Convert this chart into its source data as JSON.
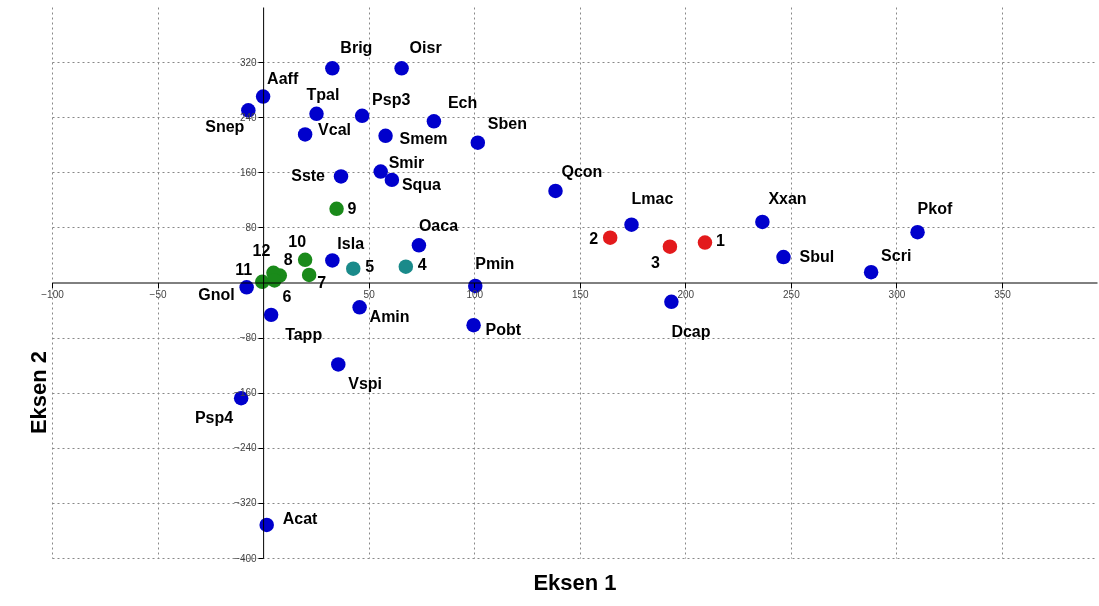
{
  "chart_data": {
    "type": "scatter",
    "xlabel": "Eksen 1",
    "ylabel": "Eksen 2",
    "xlim": [
      -100,
      395
    ],
    "ylim": [
      -400,
      400
    ],
    "xticks": [
      -100,
      -50,
      50,
      100,
      150,
      200,
      250,
      300,
      350
    ],
    "yticks": [
      -400,
      -320,
      -240,
      -160,
      -80,
      80,
      160,
      240,
      320
    ],
    "grid": true,
    "marker": "circle",
    "series": [
      {
        "color": "#0000cc",
        "x": [
          32.8,
          65.6,
          0,
          -7,
          25.3,
          46.9,
          80.9,
          19.9,
          58,
          101.7,
          36.9,
          55.7,
          61,
          73.8,
          32.8,
          100.5,
          -7.8,
          138.5,
          174.5,
          236.5,
          310,
          246.5,
          288,
          193.4,
          99.7,
          3.8,
          45.7,
          35.6,
          -10.4,
          1.7
        ],
        "values": [
          311,
          311,
          270,
          250,
          245,
          242,
          234,
          215,
          213,
          203,
          154,
          161,
          149,
          54,
          32,
          -5,
          -7,
          133,
          84,
          88,
          73,
          37,
          15,
          -28,
          -62,
          -47,
          -36,
          -119,
          -168,
          -352
        ]
      },
      {
        "color": "#e31a1c",
        "x": [
          164.4,
          192.7,
          209.3
        ],
        "values": [
          65,
          52,
          58
        ]
      },
      {
        "color": "#1a8a8a",
        "x": [
          42.7,
          67.6
        ],
        "values": [
          20,
          23
        ]
      },
      {
        "color": "#1a8a1a",
        "x": [
          34.8,
          19.9,
          21.8,
          7.9,
          4.9,
          -0.4,
          5.4
        ],
        "values": [
          107,
          33,
          11,
          10,
          14,
          1,
          3
        ]
      }
    ],
    "annotations": [
      {
        "text": "Brig",
        "x": 32.8,
        "y": 311
      },
      {
        "text": "Oisr",
        "x": 65.6,
        "y": 311
      },
      {
        "text": "Aaff",
        "x": 0,
        "y": 270
      },
      {
        "text": "Snep",
        "x": -7,
        "y": 250
      },
      {
        "text": "Tpal",
        "x": 25.3,
        "y": 245
      },
      {
        "text": "Psp3",
        "x": 46.9,
        "y": 242
      },
      {
        "text": "Ech",
        "x": 80.9,
        "y": 234
      },
      {
        "text": "Vcal",
        "x": 19.9,
        "y": 215
      },
      {
        "text": "Smem",
        "x": 58,
        "y": 213
      },
      {
        "text": "Sben",
        "x": 101.7,
        "y": 203
      },
      {
        "text": "Sste",
        "x": 36.9,
        "y": 154
      },
      {
        "text": "Smir",
        "x": 55.7,
        "y": 161
      },
      {
        "text": "Squa",
        "x": 61,
        "y": 149
      },
      {
        "text": "Oaca",
        "x": 73.8,
        "y": 54
      },
      {
        "text": "Isla",
        "x": 32.8,
        "y": 32
      },
      {
        "text": "Pmin",
        "x": 100.5,
        "y": -5
      },
      {
        "text": "Gnol",
        "x": -7.8,
        "y": -7
      },
      {
        "text": "Qcon",
        "x": 138.5,
        "y": 133
      },
      {
        "text": "Lmac",
        "x": 174.5,
        "y": 84
      },
      {
        "text": "Xxan",
        "x": 236.5,
        "y": 88
      },
      {
        "text": "Pkof",
        "x": 310,
        "y": 73
      },
      {
        "text": "Sbul",
        "x": 246.5,
        "y": 37
      },
      {
        "text": "Scri",
        "x": 288,
        "y": 15
      },
      {
        "text": "Dcap",
        "x": 193.4,
        "y": -28
      },
      {
        "text": "Pobt",
        "x": 99.7,
        "y": -62
      },
      {
        "text": "Tapp",
        "x": 3.8,
        "y": -47
      },
      {
        "text": "Amin",
        "x": 45.7,
        "y": -36
      },
      {
        "text": "Vspi",
        "x": 35.6,
        "y": -119
      },
      {
        "text": "Psp4",
        "x": -10.4,
        "y": -168
      },
      {
        "text": "Acat",
        "x": 1.7,
        "y": -352
      },
      {
        "text": "2",
        "x": 164.4,
        "y": 65
      },
      {
        "text": "3",
        "x": 192.7,
        "y": 52
      },
      {
        "text": "1",
        "x": 209.3,
        "y": 58
      },
      {
        "text": "5",
        "x": 42.7,
        "y": 20
      },
      {
        "text": "4",
        "x": 67.6,
        "y": 23
      },
      {
        "text": "9",
        "x": 34.8,
        "y": 107
      },
      {
        "text": "10",
        "x": 19.9,
        "y": 33
      },
      {
        "text": "7",
        "x": 21.8,
        "y": 11
      },
      {
        "text": "8",
        "x": 7.9,
        "y": 10
      },
      {
        "text": "12",
        "x": 4.9,
        "y": 14
      },
      {
        "text": "11",
        "x": -0.4,
        "y": 1
      },
      {
        "text": "6",
        "x": 5.4,
        "y": 3
      }
    ]
  }
}
